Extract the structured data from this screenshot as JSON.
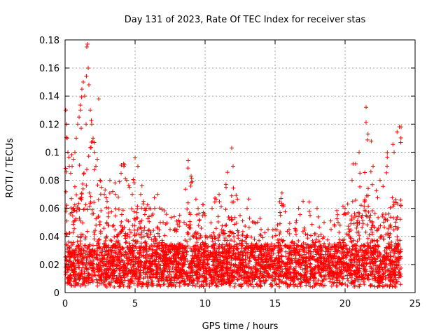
{
  "chart_data": {
    "type": "scatter",
    "title": "Day 131 of 2023, Rate Of TEC Index for receiver stas",
    "xlabel": "GPS time / hours",
    "ylabel": "ROTI / TECUs",
    "xlim": [
      0,
      25
    ],
    "ylim": [
      0,
      0.18
    ],
    "xticks": [
      0,
      5,
      10,
      15,
      20,
      25
    ],
    "xtick_labels": [
      "0",
      "5",
      "10",
      "15",
      "20",
      "25"
    ],
    "yticks": [
      0,
      0.02,
      0.04,
      0.06,
      0.08,
      0.1,
      0.12,
      0.14,
      0.16,
      0.18
    ],
    "ytick_labels": [
      "0",
      "0.02",
      "0.04",
      "0.06",
      "0.08",
      "0.1",
      "0.12",
      "0.14",
      "0.16",
      "0.18"
    ],
    "grid": true,
    "marker": "+",
    "color": "#ff0000",
    "series": [
      {
        "name": "ROTI",
        "x": [
          0.05,
          0.1,
          0.15,
          0.2,
          0.3,
          0.4,
          0.5,
          0.6,
          0.7,
          0.8,
          0.9,
          1.0,
          1.1,
          1.2,
          1.3,
          1.4,
          1.5,
          1.55,
          1.6,
          1.65,
          1.7,
          1.8,
          1.9,
          2.0,
          2.1,
          2.2,
          2.3,
          2.4,
          2.5,
          2.6,
          2.8,
          3.0,
          3.2,
          3.4,
          3.6,
          3.8,
          4.0,
          4.2,
          4.4,
          4.6,
          4.8,
          5.0,
          5.2,
          5.4,
          5.6,
          5.8,
          6.0,
          6.2,
          6.4,
          6.6,
          6.8,
          7.0,
          7.5,
          8.0,
          8.5,
          8.8,
          9.0,
          9.5,
          10.0,
          10.5,
          11.0,
          11.5,
          11.9,
          12.0,
          12.5,
          13.0,
          13.5,
          14.0,
          14.5,
          15.0,
          15.5,
          16.0,
          16.5,
          17.0,
          17.5,
          18.0,
          18.5,
          19.0,
          19.5,
          20.0,
          20.5,
          21.0,
          21.5,
          22.0,
          22.5,
          23.0,
          23.5,
          24.0
        ],
        "y": [
          0.13,
          0.12,
          0.11,
          0.1,
          0.09,
          0.085,
          0.09,
          0.095,
          0.1,
          0.11,
          0.12,
          0.125,
          0.13,
          0.145,
          0.15,
          0.14,
          0.12,
          0.175,
          0.177,
          0.16,
          0.148,
          0.13,
          0.12,
          0.11,
          0.1,
          0.09,
          0.095,
          0.138,
          0.08,
          0.075,
          0.07,
          0.065,
          0.08,
          0.072,
          0.07,
          0.068,
          0.085,
          0.09,
          0.08,
          0.075,
          0.07,
          0.096,
          0.09,
          0.07,
          0.065,
          0.06,
          0.06,
          0.055,
          0.06,
          0.07,
          0.05,
          0.05,
          0.045,
          0.045,
          0.05,
          0.094,
          0.083,
          0.06,
          0.055,
          0.06,
          0.07,
          0.075,
          0.103,
          0.09,
          0.055,
          0.06,
          0.05,
          0.045,
          0.045,
          0.045,
          0.062,
          0.045,
          0.05,
          0.065,
          0.055,
          0.06,
          0.05,
          0.045,
          0.05,
          0.06,
          0.08,
          0.1,
          0.132,
          0.09,
          0.08,
          0.09,
          0.1,
          0.118
        ]
      }
    ]
  }
}
